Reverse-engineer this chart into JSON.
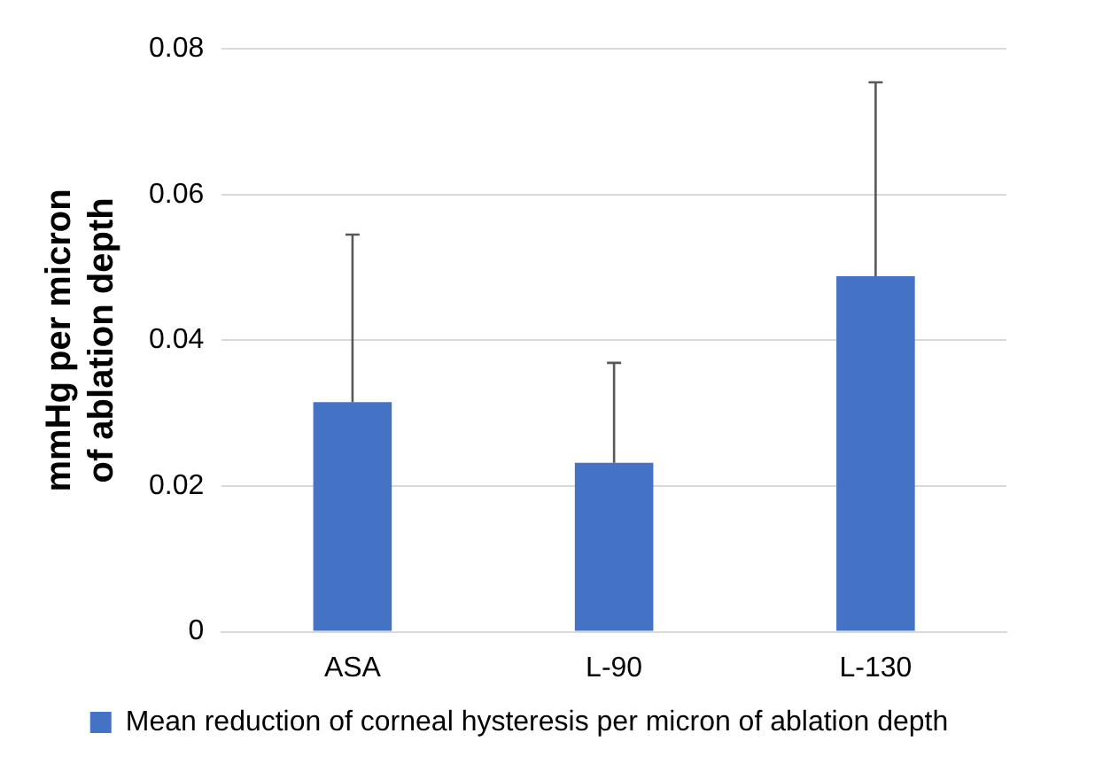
{
  "chart_data": {
    "type": "bar",
    "ylabel": "mmHg per micron of ablation depth",
    "categories": [
      "ASA",
      "L-90",
      "L-130"
    ],
    "series": [
      {
        "name": "Mean reduction of corneal hysteresis per micron of ablation depth",
        "color": "#4472c4",
        "values": [
          0.0315,
          0.0232,
          0.0488
        ],
        "errors": [
          [
            0.0315,
            0.0545
          ],
          [
            0.0232,
            0.0369
          ],
          [
            0.0488,
            0.0754
          ]
        ]
      }
    ],
    "ylim": [
      0,
      0.08
    ],
    "yticks": [
      0,
      0.02,
      0.04,
      0.06,
      0.08
    ],
    "grid": "y",
    "legend": "bottom"
  }
}
